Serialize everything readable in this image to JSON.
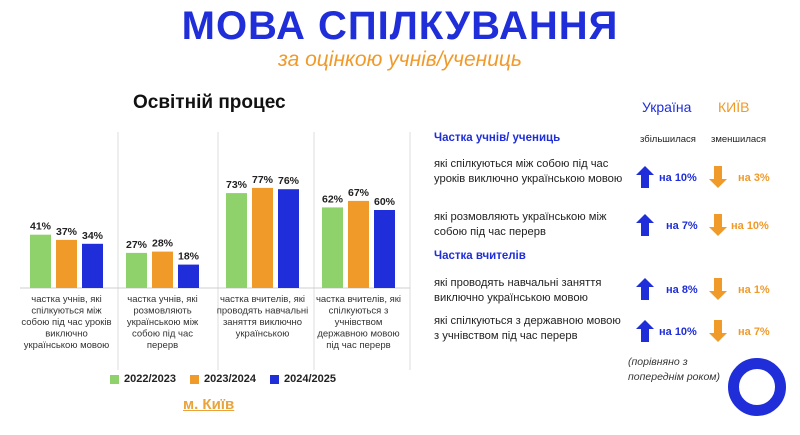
{
  "header": {
    "title": "МОВА СПІЛКУВАННЯ",
    "subtitle": "за оцінкою учнів/учениць"
  },
  "chart_title": "Освітній процес",
  "city_label": "м. Київ",
  "chart_data": {
    "type": "bar",
    "title": "Освітній процес",
    "categories": [
      "частка учнів, які спілкуються між собою під час уроків виключно українською мовою",
      "частка учнів, які розмовляють українською між собою під час перерв",
      "частка вчителів, які проводять навчальні заняття виключно українською",
      "частка вчителів, які спілкуються з учнівством державною мовою під час перерв"
    ],
    "category_lines": [
      [
        "частка учнів, які",
        "спілкуються між",
        "собою під час уроків",
        "виключно",
        "українською мовою"
      ],
      [
        "частка учнів, які",
        "розмовляють",
        "українською між",
        "собою під час",
        "перерв"
      ],
      [
        "частка вчителів, які",
        "проводять навчальні",
        "заняття виключно",
        "українською"
      ],
      [
        "частка вчителів, які",
        "спілкуються з",
        "учнівством",
        "державною мовою",
        "під час перерв"
      ]
    ],
    "series": [
      {
        "name": "2022/2023",
        "color": "#8fd16a",
        "values": [
          41,
          27,
          73,
          62
        ],
        "labels": [
          "41%",
          "27%",
          "73%",
          "62%"
        ]
      },
      {
        "name": "2023/2024",
        "color": "#f09a2a",
        "values": [
          37,
          28,
          77,
          67
        ],
        "labels": [
          "37%",
          "28%",
          "77%",
          "67%"
        ]
      },
      {
        "name": "2024/2025",
        "color": "#1f2ed8",
        "values": [
          34,
          18,
          76,
          60
        ],
        "labels": [
          "34%",
          "18%",
          "76%",
          "60%"
        ]
      }
    ],
    "ylim": [
      0,
      80
    ],
    "grid": false,
    "legend_position": "bottom"
  },
  "right_panel": {
    "head_ukraine": "Україна",
    "head_kyiv": "КИЇВ",
    "label_increased": "збільшилася",
    "label_decreased": "зменшилася",
    "section_students": "Частка учнів/ учениць",
    "section_teachers": "Частка вчителів",
    "rows": [
      {
        "text": "які спілкуються між собою під час уроків виключно українською мовою",
        "ukraine": "на 10%",
        "kyiv": "на 3%"
      },
      {
        "text": "які розмовляють українською між собою під час перерв",
        "ukraine": "на 7%",
        "kyiv": "на 10%"
      },
      {
        "text": "які проводять навчальні заняття виключно українською мовою",
        "ukraine": "на 8%",
        "kyiv": "на 1%"
      },
      {
        "text": "які спілкуються з державною мовою з учнівством під час перерв",
        "ukraine": "на 10%",
        "kyiv": "на 7%"
      }
    ],
    "note": "(порівняно з попереднім роком)"
  },
  "colors": {
    "blue": "#1f2ed8",
    "orange": "#f09a2a",
    "green": "#8fd16a"
  }
}
